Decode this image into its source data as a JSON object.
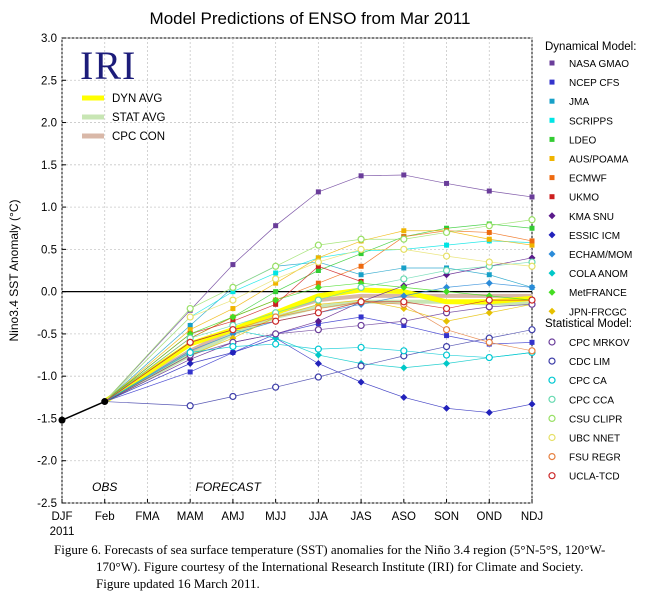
{
  "chart_data": {
    "type": "line",
    "title": "Model Predictions of ENSO from Mar 2011",
    "ylabel": "Nino3.4 SST Anomaly (°C)",
    "ylim": [
      -2.5,
      3.0
    ],
    "yticks": [
      -2.5,
      -2.0,
      -1.5,
      -1.0,
      -0.5,
      0.0,
      0.5,
      1.0,
      1.5,
      2.0,
      2.5,
      3.0
    ],
    "x_categories": [
      "DJF",
      "Feb",
      "FMA",
      "MAM",
      "AMJ",
      "MJJ",
      "JJA",
      "JAS",
      "ASO",
      "SON",
      "OND",
      "NDJ"
    ],
    "x_sub_label": "2011",
    "grid": true,
    "legend_position": "right",
    "logo_text": "IRI",
    "obs_label": "OBS",
    "forecast_label": "FORECAST",
    "observed": {
      "x": [
        "DJF",
        "Feb"
      ],
      "values": [
        -1.52,
        -1.3
      ]
    },
    "averages_legend": [
      {
        "name": "DYN AVG",
        "color": "#ffff00"
      },
      {
        "name": "STAT AVG",
        "color": "#c8e6b4"
      },
      {
        "name": "CPC CON",
        "color": "#d9b8a8"
      }
    ],
    "averages": [
      {
        "name": "STAT AVG",
        "color": "#c8e6b4",
        "width": 4,
        "values": [
          -0.75,
          -0.5,
          -0.3,
          -0.18,
          -0.12,
          -0.12,
          -0.12,
          -0.14,
          -0.14
        ]
      },
      {
        "name": "CPC CON",
        "color": "#d9b8a8",
        "width": 4,
        "values": [
          -0.7,
          -0.45,
          -0.25,
          -0.1,
          -0.05,
          -0.05,
          -0.05,
          -0.05,
          -0.05
        ]
      },
      {
        "name": "DYN AVG",
        "color": "#ffff00",
        "width": 5,
        "values": [
          -0.62,
          -0.45,
          -0.25,
          -0.05,
          0.02,
          0.0,
          -0.12,
          -0.12,
          -0.08
        ]
      }
    ],
    "dynamical_title": "Dynamical Model:",
    "statistical_title": "Statistical Model:",
    "series": [
      {
        "name": "NASA GMAO",
        "group": "dynamical",
        "marker": "square",
        "color": "#6a3d9a",
        "values": [
          -0.22,
          0.32,
          0.78,
          1.18,
          1.37,
          1.38,
          1.28,
          1.19,
          1.12
        ]
      },
      {
        "name": "NCEP CFS",
        "group": "dynamical",
        "marker": "square",
        "color": "#3333cc",
        "values": [
          -0.95,
          -0.72,
          -0.5,
          -0.38,
          -0.3,
          -0.4,
          -0.52,
          -0.62,
          -0.6
        ]
      },
      {
        "name": "JMA",
        "group": "dynamical",
        "marker": "square",
        "color": "#17a0c8",
        "values": [
          -0.4,
          0.05,
          0.3,
          0.35,
          0.2,
          0.28,
          0.28,
          0.2,
          0.05
        ]
      },
      {
        "name": "SCRIPPS",
        "group": "dynamical",
        "marker": "square",
        "color": "#00e5e5",
        "values": [
          -0.3,
          0.0,
          0.22,
          0.4,
          0.48,
          0.5,
          0.55,
          0.6,
          0.58
        ]
      },
      {
        "name": "LDEO",
        "group": "dynamical",
        "marker": "square",
        "color": "#33cc33",
        "values": [
          -0.55,
          -0.3,
          0.0,
          0.25,
          0.45,
          0.65,
          0.75,
          0.8,
          0.75
        ]
      },
      {
        "name": "AUS/POAMA",
        "group": "dynamical",
        "marker": "square",
        "color": "#f0b400",
        "values": [
          -0.45,
          -0.2,
          0.1,
          0.4,
          0.6,
          0.72,
          0.72,
          0.62,
          0.55
        ]
      },
      {
        "name": "ECMWF",
        "group": "dynamical",
        "marker": "square",
        "color": "#ee6a10",
        "values": [
          -0.55,
          -0.3,
          -0.1,
          0.1,
          0.3,
          0.65,
          0.72,
          0.7,
          0.6
        ]
      },
      {
        "name": "UKMO",
        "group": "dynamical",
        "marker": "square",
        "color": "#cc1f1f",
        "values": [
          -0.5,
          -0.35,
          -0.15,
          0.3,
          0.12
        ]
      },
      {
        "name": "KMA SNU",
        "group": "dynamical",
        "marker": "diamond",
        "color": "#5a1a8a",
        "values": [
          -0.8,
          -0.6,
          -0.5,
          -0.35,
          -0.12,
          0.07,
          0.2,
          0.3,
          0.4
        ]
      },
      {
        "name": "ESSIC ICM",
        "group": "dynamical",
        "marker": "diamond",
        "color": "#2222bb",
        "values": [
          -0.85,
          -0.72,
          -0.55,
          -0.85,
          -1.07,
          -1.25,
          -1.38,
          -1.43,
          -1.33
        ]
      },
      {
        "name": "ECHAM/MOM",
        "group": "dynamical",
        "marker": "diamond",
        "color": "#2b8bd9",
        "values": [
          -0.7,
          -0.5,
          -0.35,
          -0.25,
          -0.15,
          -0.05,
          0.05,
          0.1,
          0.05
        ]
      },
      {
        "name": "COLA ANOM",
        "group": "dynamical",
        "marker": "diamond",
        "color": "#00c8c8",
        "values": [
          -0.6,
          -0.45,
          -0.55,
          -0.75,
          -0.85,
          -0.9,
          -0.85,
          -0.78,
          -0.72
        ]
      },
      {
        "name": "MetFRANCE",
        "group": "dynamical",
        "marker": "diamond",
        "color": "#44dd22",
        "values": [
          -0.5,
          -0.3,
          -0.1,
          0.05,
          0.1,
          0.05,
          0.0,
          -0.05,
          -0.1
        ]
      },
      {
        "name": "JPN-FRCGC",
        "group": "dynamical",
        "marker": "diamond",
        "color": "#e6c000",
        "values": [
          -0.75,
          -0.55,
          -0.3,
          -0.15,
          -0.1,
          -0.2,
          -0.35,
          -0.25,
          -0.15
        ]
      },
      {
        "name": "CPC MRKOV",
        "group": "statistical",
        "marker": "circle",
        "color": "#6a3d9a",
        "values": [
          -0.75,
          -0.6,
          -0.5,
          -0.45,
          -0.4,
          -0.35,
          -0.25,
          -0.18,
          -0.15
        ]
      },
      {
        "name": "CDC LIM",
        "group": "statistical",
        "marker": "circle",
        "color": "#3d3da8",
        "values": [
          -1.35,
          -1.24,
          -1.13,
          -1.01,
          -0.88,
          -0.76,
          -0.65,
          -0.55,
          -0.45
        ]
      },
      {
        "name": "CPC CA",
        "group": "statistical",
        "marker": "circle",
        "color": "#00c8d2",
        "values": [
          -0.72,
          -0.65,
          -0.62,
          -0.68,
          -0.66,
          -0.7,
          -0.75,
          -0.78,
          -0.72
        ]
      },
      {
        "name": "CPC CCA",
        "group": "statistical",
        "marker": "circle",
        "color": "#66d9b0",
        "values": [
          -0.55,
          -0.4,
          -0.25,
          -0.1,
          0.05,
          0.15,
          0.25,
          0.3,
          0.35
        ]
      },
      {
        "name": "CSU CLIPR",
        "group": "statistical",
        "marker": "circle",
        "color": "#99e066",
        "values": [
          -0.2,
          0.05,
          0.3,
          0.55,
          0.62,
          0.62,
          0.7,
          0.78,
          0.85
        ]
      },
      {
        "name": "UBC NNET",
        "group": "statistical",
        "marker": "circle",
        "color": "#e6e066",
        "values": [
          -0.3,
          -0.1,
          0.15,
          0.35,
          0.5,
          0.5,
          0.42,
          0.35,
          0.3
        ]
      },
      {
        "name": "FSU REGR",
        "group": "statistical",
        "marker": "circle",
        "color": "#e68040",
        "values": [
          -0.6,
          -0.45,
          -0.3,
          -0.2,
          -0.12,
          -0.15,
          -0.45,
          -0.6,
          -0.7
        ]
      },
      {
        "name": "UCLA-TCD",
        "group": "statistical",
        "marker": "circle",
        "color": "#cc2a2a",
        "values": [
          -0.6,
          -0.45,
          -0.35,
          -0.25,
          -0.12,
          -0.12,
          -0.2,
          -0.1,
          -0.1
        ]
      }
    ]
  },
  "caption": {
    "line1": "Figure 6. Forecasts of sea surface temperature (SST) anomalies for the Niño 3.4 region (5°N-5°S, 120°W-",
    "line2": "170°W).  Figure courtesy of the International Research Institute (IRI) for Climate and Society.",
    "line3": "Figure updated 16 March 2011."
  }
}
